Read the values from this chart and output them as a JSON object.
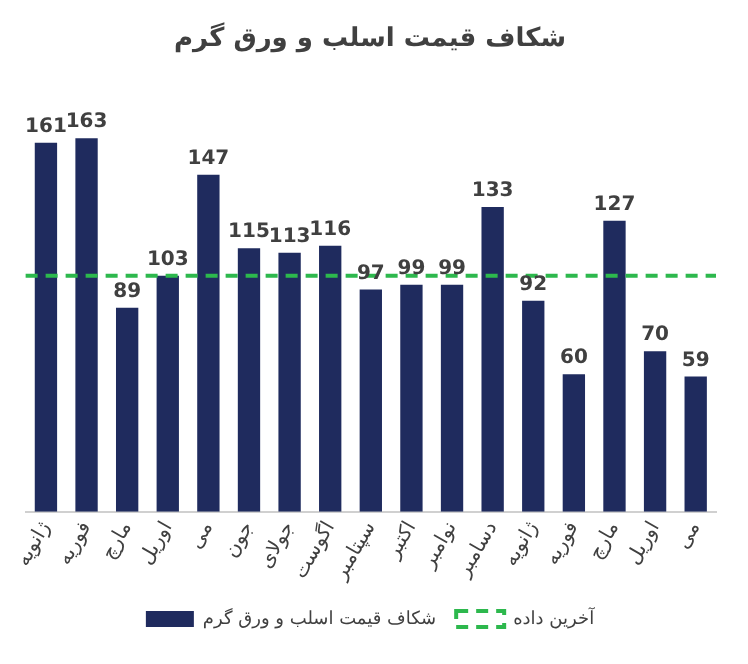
{
  "chart_data": {
    "type": "bar",
    "title": "شکاف قیمت اسلب و ورق گرم",
    "categories": [
      "ژانویه",
      "فوریه",
      "مارچ",
      "اوریل",
      "می",
      "جون",
      "جولای",
      "اگوست",
      "سپتامبر",
      "اکتبر",
      "نوامبر",
      "دسامبر",
      "ژانویه",
      "فوریه",
      "مارچ",
      "اوریل",
      "می"
    ],
    "series": [
      {
        "name": "شکاف قیمت اسلب و ورق گرم",
        "color": "#1f2b5e",
        "values": [
          161,
          163,
          89,
          103,
          147,
          115,
          113,
          116,
          97,
          99,
          99,
          133,
          92,
          60,
          127,
          70,
          59
        ]
      }
    ],
    "ref_lines": [
      {
        "axis": "y",
        "value": 103,
        "label": "آخرین داده",
        "color": "#2db84d",
        "line_style": "dashed"
      }
    ],
    "data_labels": true,
    "grid": false,
    "legend": "bottom"
  }
}
